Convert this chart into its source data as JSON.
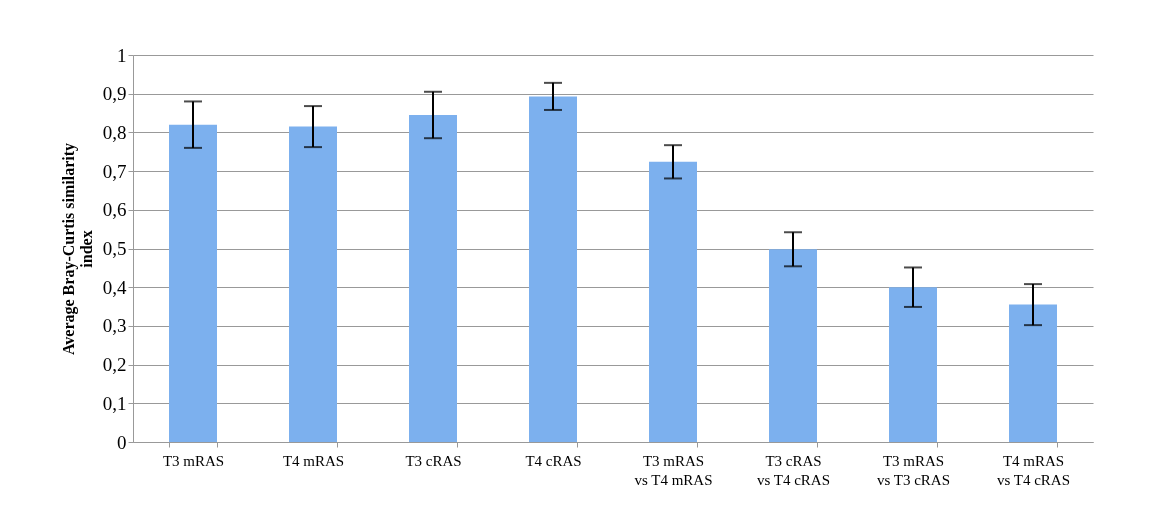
{
  "chart_data": {
    "type": "bar",
    "ylabel": "Average Bray-Curtis similarity index",
    "categories": [
      "T3 mRAS",
      "T4 mRAS",
      "T3 cRAS",
      "T4 cRAS",
      "T3 mRAS vs T4 mRAS",
      "T3 cRAS vs T4 cRAS",
      "T3 mRAS vs T3 cRAS",
      "T4 mRAS vs T4 cRAS"
    ],
    "values": [
      0.82,
      0.815,
      0.845,
      0.893,
      0.724,
      0.498,
      0.4,
      0.355
    ],
    "errors": [
      0.06,
      0.053,
      0.06,
      0.035,
      0.043,
      0.044,
      0.051,
      0.053
    ],
    "color": "#7cb0ee",
    "ylim": [
      0,
      1
    ],
    "yticks": [
      0,
      {
        "value": 0.1,
        "label": "0,1"
      },
      {
        "value": 0.2,
        "label": "0,2"
      },
      {
        "value": 0.3,
        "label": "0,3"
      },
      {
        "value": 0.4,
        "label": "0,4"
      },
      {
        "value": 0.5,
        "label": "0,5"
      },
      {
        "value": 0.6,
        "label": "0,6"
      },
      {
        "value": 0.7,
        "label": "0,7"
      },
      {
        "value": 0.8,
        "label": "0,8"
      },
      {
        "value": 0.9,
        "label": "0,9"
      },
      1
    ],
    "grid": "y"
  }
}
